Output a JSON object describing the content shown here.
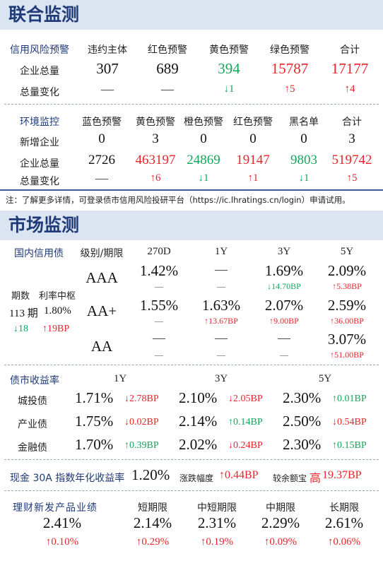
{
  "section1": {
    "title": "联合监测",
    "credit": {
      "label": "信用风险预警",
      "headers": [
        "违约主体",
        "红色预警",
        "黄色预警",
        "绿色预警",
        "合计"
      ],
      "rows": [
        {
          "label": "企业总量",
          "values": [
            "307",
            "689",
            "394",
            "15787",
            "17177"
          ]
        },
        {
          "label": "总量变化",
          "values": [
            "—",
            "—",
            "↓1",
            "↑5",
            "↑4"
          ]
        }
      ]
    },
    "env": {
      "label": "环境监控",
      "headers": [
        "蓝色预警",
        "黄色预警",
        "橙色预警",
        "红色预警",
        "黑名单",
        "合计"
      ],
      "rows": [
        {
          "label": "新增企业",
          "values": [
            "0",
            "3",
            "0",
            "0",
            "0",
            "3"
          ]
        },
        {
          "label": "企业总量",
          "values": [
            "2726",
            "463197",
            "24869",
            "19147",
            "9803",
            "519742"
          ]
        },
        {
          "label": "总量变化",
          "values": [
            "—",
            "↑6",
            "↓1",
            "↑1",
            "↓1",
            "↑5"
          ]
        }
      ]
    },
    "note": "注：了解更多详情，可登录债市信用风险投研平台（https://ic.lhratings.cn/login）申请试用。"
  },
  "section2": {
    "title": "市场监测",
    "domestic": {
      "label": "国内信用债",
      "header_label": "级别/期限",
      "tenors": [
        "270D",
        "1Y",
        "3Y",
        "5Y"
      ],
      "issue_label": "期数",
      "median_label": "利率中枢",
      "issue_count": "113 期",
      "median_rate": "1.80%",
      "issue_change": "↓18",
      "median_change": "↑19BP",
      "grades": [
        {
          "grade": "AAA",
          "rates": [
            "1.42%",
            "—",
            "1.69%",
            "2.09%"
          ],
          "changes": [
            "—",
            "—",
            "↓14.70BP",
            "↑5.38BP"
          ]
        },
        {
          "grade": "AA+",
          "rates": [
            "1.55%",
            "1.63%",
            "2.07%",
            "2.59%"
          ],
          "changes": [
            "—",
            "↑13.67BP",
            "↑9.00BP",
            "↑36.00BP"
          ]
        },
        {
          "grade": "AA",
          "rates": [
            "—",
            "—",
            "—",
            "3.07%"
          ],
          "changes": [
            "—",
            "—",
            "—",
            "↑51.00BP"
          ]
        }
      ]
    },
    "yields": {
      "label": "债市收益率",
      "tenors": [
        "1Y",
        "3Y",
        "5Y"
      ],
      "rows": [
        {
          "label": "城投债",
          "cells": [
            {
              "rate": "1.71%",
              "chg": "↓2.78BP"
            },
            {
              "rate": "2.10%",
              "chg": "↓2.05BP"
            },
            {
              "rate": "2.30%",
              "chg": "↑0.01BP"
            }
          ]
        },
        {
          "label": "产业债",
          "cells": [
            {
              "rate": "1.75%",
              "chg": "↓0.02BP"
            },
            {
              "rate": "2.14%",
              "chg": "↑0.14BP"
            },
            {
              "rate": "2.50%",
              "chg": "↓0.54BP"
            }
          ]
        },
        {
          "label": "金融债",
          "cells": [
            {
              "rate": "1.70%",
              "chg": "↑0.39BP"
            },
            {
              "rate": "2.02%",
              "chg": "↓0.24BP"
            },
            {
              "rate": "2.30%",
              "chg": "↑0.15BP"
            }
          ]
        }
      ]
    },
    "cash": {
      "label": "现金 30A 指数年化收益率",
      "value": "1.20%",
      "change_label": "涨跌幅度",
      "change": "↑0.44BP",
      "compare_label": "较余额宝",
      "compare_word": "高",
      "compare_value": "19.37BP"
    },
    "wm": {
      "label": "理财新发产品业绩",
      "headers": [
        "短期限",
        "中短期限",
        "中期限",
        "长期限"
      ],
      "overall_rate": "2.41%",
      "overall_change": "↑0.10%",
      "rates": [
        "2.14%",
        "2.31%",
        "2.29%",
        "2.61%"
      ],
      "changes": [
        "↑0.29%",
        "↑0.19%",
        "↑0.09%",
        "↑0.06%"
      ]
    }
  },
  "colors": {
    "red": "#e8242a",
    "green": "#15a55a",
    "blue": "#1f3a78",
    "header_bg": "#dbe4f1"
  }
}
